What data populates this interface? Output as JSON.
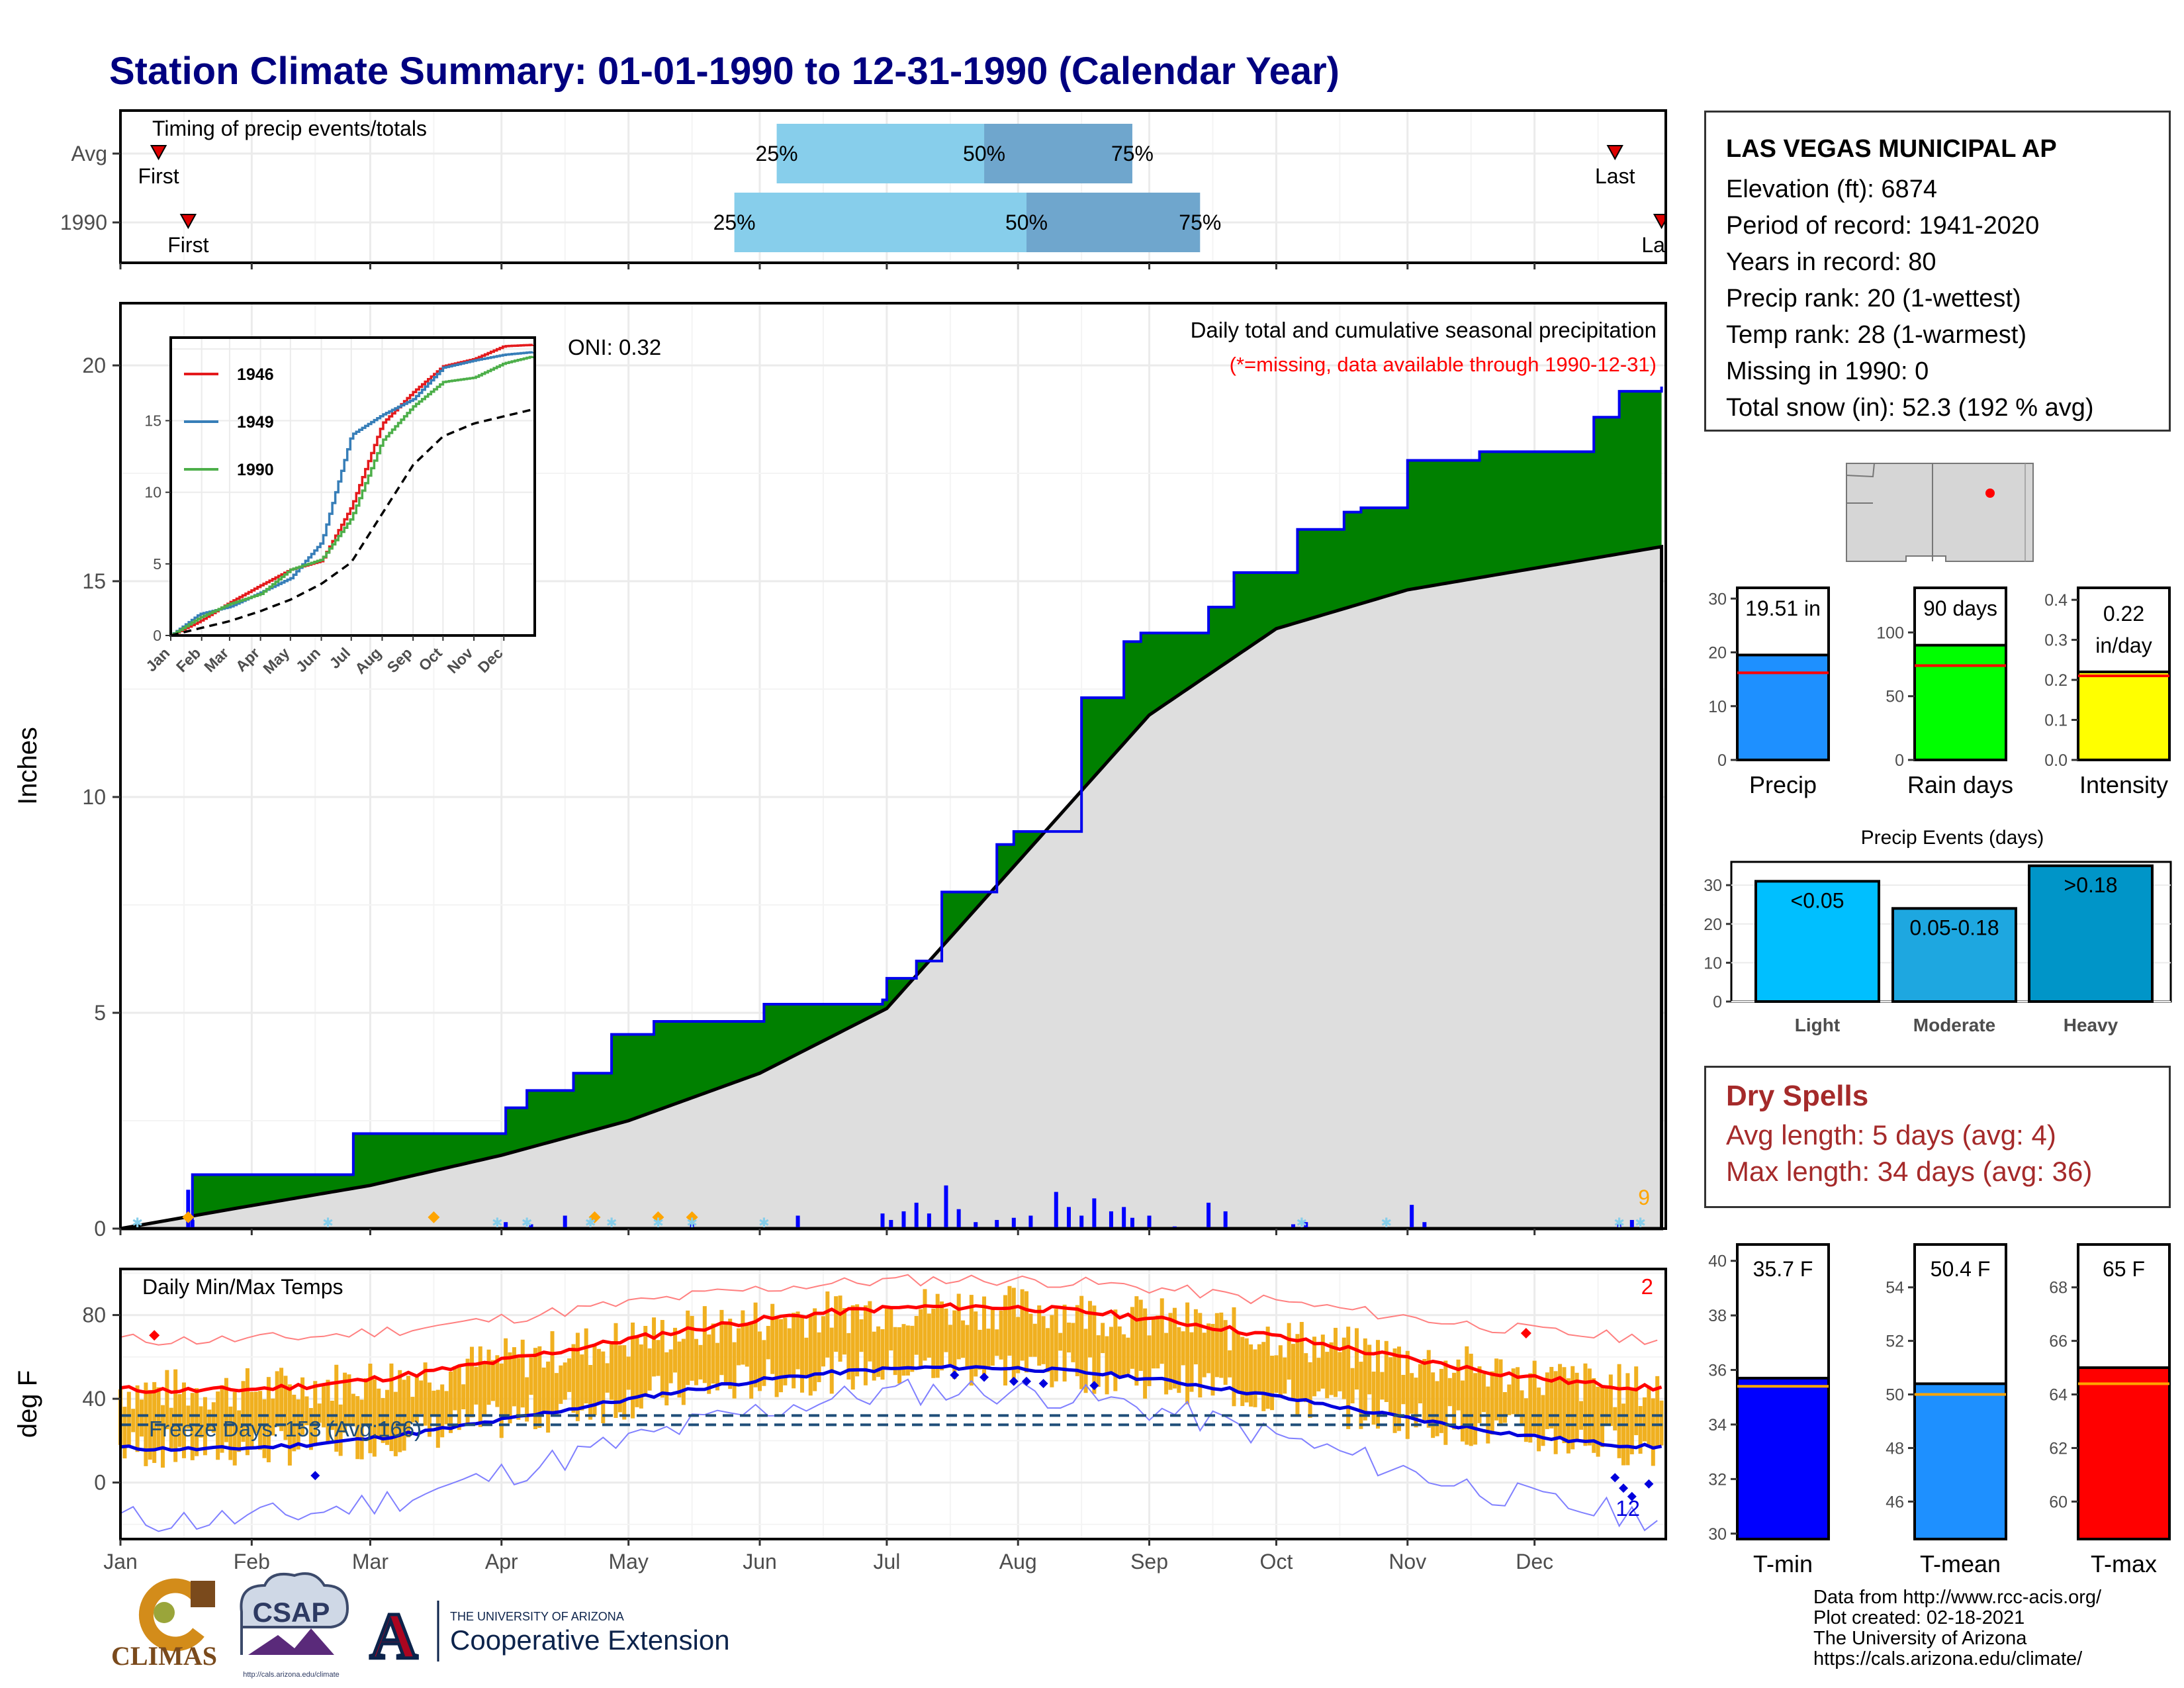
{
  "title": "Station Climate Summary: 01-01-1990 to 12-31-1990 (Calendar Year)",
  "timing_panel": {
    "label": "Timing of precip events/totals",
    "rows": [
      {
        "name": "Avg",
        "first_label": "First",
        "last_label": "Last",
        "first_doy": 10,
        "last_doy": 354,
        "p25_doy": 156,
        "p50_doy": 205,
        "p75_doy": 240,
        "p25_label": "25%",
        "p50_label": "50%",
        "p75_label": "75%"
      },
      {
        "name": "1990",
        "first_label": "First",
        "last_label": "Last",
        "first_doy": 17,
        "last_doy": 365,
        "p25_doy": 146,
        "p50_doy": 215,
        "p75_doy": 256,
        "p25_label": "25%",
        "p50_label": "50%",
        "p75_label": "75%"
      }
    ]
  },
  "precip_panel": {
    "ylabel": "Inches",
    "header": "Daily total and cumulative seasonal precipitation",
    "missing_note": "(*=missing, data available through 1990-12-31)",
    "oni": "ONI: 0.32",
    "missing_count": "9",
    "y_ticks": [
      "0",
      "5",
      "10",
      "15",
      "20"
    ]
  },
  "inset": {
    "legend": [
      "1946",
      "1949",
      "1990"
    ],
    "y_ticks": [
      "0",
      "5",
      "10",
      "15"
    ],
    "x_ticks": [
      "Jan",
      "Feb",
      "Mar",
      "Apr",
      "May",
      "Jun",
      "Jul",
      "Aug",
      "Sep",
      "Oct",
      "Nov",
      "Dec"
    ]
  },
  "temp_panel": {
    "ylabel": "deg F",
    "header": "Daily Min/Max Temps",
    "freeze_label": "Freeze Days: 153 (Avg:166)",
    "record_high_count": "2",
    "record_low_count": "12",
    "y_ticks": [
      "0",
      "40",
      "80"
    ]
  },
  "months": [
    "Jan",
    "Feb",
    "Mar",
    "Apr",
    "May",
    "Jun",
    "Jul",
    "Aug",
    "Sep",
    "Oct",
    "Nov",
    "Dec"
  ],
  "station": {
    "name": "LAS VEGAS MUNICIPAL AP",
    "lines": [
      "Elevation (ft): 6874",
      "Period of record: 1941-2020",
      "Years in record: 80",
      "Precip rank: 20 (1-wettest)",
      "Temp rank: 28 (1-warmest)",
      "Missing in 1990: 0",
      "Total snow (in): 52.3 (192 % avg)"
    ]
  },
  "summary_bars": [
    {
      "label": "Precip",
      "value_label": "19.51 in",
      "ticks": [
        "0",
        "10",
        "20",
        "30"
      ],
      "color": "#1e90ff"
    },
    {
      "label": "Rain days",
      "value_label": "90 days",
      "ticks": [
        "0",
        "50",
        "100"
      ],
      "color": "#00ff00"
    },
    {
      "label": "Intensity",
      "value_label_1": "0.22",
      "value_label_2": "in/day",
      "ticks": [
        "0.0",
        "0.1",
        "0.2",
        "0.3",
        "0.4"
      ],
      "color": "#ffff00"
    }
  ],
  "precip_events": {
    "title": "Precip Events (days)",
    "ticks": [
      "0",
      "10",
      "20",
      "30"
    ],
    "bars": [
      {
        "label": "Light",
        "inner": "<0.05",
        "color": "#00bfff"
      },
      {
        "label": "Moderate",
        "inner": "0.05-0.18",
        "color": "#1ea7e0"
      },
      {
        "label": "Heavy",
        "inner": ">0.18",
        "color": "#0095c8"
      }
    ]
  },
  "dry_spells": {
    "title": "Dry Spells",
    "avg": "Avg length: 5 days (avg: 4)",
    "max": "Max length: 34 days (avg: 36)",
    "color": "#a52a2a"
  },
  "temp_bars": [
    {
      "label": "T-min",
      "value_label": "35.7 F",
      "ticks": [
        "30",
        "32",
        "34",
        "36",
        "38",
        "40"
      ],
      "color": "#0000ff"
    },
    {
      "label": "T-mean",
      "value_label": "50.4 F",
      "ticks": [
        "46",
        "48",
        "50",
        "52",
        "54"
      ],
      "color": "#1e90ff"
    },
    {
      "label": "T-max",
      "value_label": "65 F",
      "ticks": [
        "60",
        "62",
        "64",
        "66",
        "68"
      ],
      "color": "#ff0000"
    }
  ],
  "footer": [
    "Data from http://www.rcc-acis.org/",
    "Plot created: 02-18-2021",
    "The University of Arizona",
    "https://cals.arizona.edu/climate/"
  ],
  "logos": {
    "climas": "CLIMAS",
    "csap": "CSAP",
    "csap_url": "http://cals.arizona.edu/climate",
    "ua_small": "THE UNIVERSITY OF ARIZONA",
    "ua_big": "Cooperative Extension",
    "ua_letter": "A"
  },
  "chart_data": [
    {
      "type": "area",
      "title": "Daily total and cumulative seasonal precipitation",
      "xlabel": "",
      "ylabel": "Inches",
      "ylim": [
        0,
        21.5
      ],
      "x_unit": "day of year",
      "series": [
        {
          "name": "1990",
          "x": [
            1,
            17,
            18,
            55,
            56,
            84,
            92,
            97,
            108,
            117,
            127,
            153,
            181,
            182,
            189,
            195,
            208,
            212,
            228,
            238,
            242,
            258,
            264,
            279,
            290,
            294,
            305,
            322,
            349,
            355,
            365
          ],
          "y": [
            0,
            0,
            1.25,
            1.25,
            2.2,
            2.2,
            2.8,
            3.2,
            3.6,
            4.5,
            4.8,
            5.2,
            5.3,
            5.8,
            6.2,
            7.8,
            8.9,
            9.2,
            12.3,
            13.6,
            13.8,
            14.4,
            15.2,
            16.2,
            16.6,
            16.7,
            17.8,
            18.0,
            18.8,
            19.4,
            19.51
          ]
        },
        {
          "name": "Avg",
          "x": [
            1,
            30,
            60,
            91,
            121,
            152,
            182,
            213,
            244,
            274,
            305,
            335,
            365
          ],
          "y": [
            0,
            0.5,
            1.0,
            1.7,
            2.5,
            3.6,
            5.1,
            8.5,
            11.9,
            13.9,
            14.8,
            15.3,
            15.8
          ]
        }
      ],
      "daily_precip": [
        [
          17,
          0.9
        ],
        [
          18,
          0.2
        ],
        [
          92,
          0.15
        ],
        [
          98,
          0.1
        ],
        [
          106,
          0.3
        ],
        [
          136,
          0.25
        ],
        [
          161,
          0.3
        ],
        [
          181,
          0.35
        ],
        [
          183,
          0.2
        ],
        [
          186,
          0.4
        ],
        [
          189,
          0.6
        ],
        [
          192,
          0.35
        ],
        [
          196,
          1.0
        ],
        [
          199,
          0.45
        ],
        [
          203,
          0.15
        ],
        [
          208,
          0.2
        ],
        [
          212,
          0.25
        ],
        [
          216,
          0.3
        ],
        [
          222,
          0.85
        ],
        [
          225,
          0.5
        ],
        [
          228,
          0.3
        ],
        [
          231,
          0.7
        ],
        [
          235,
          0.4
        ],
        [
          238,
          0.5
        ],
        [
          240,
          0.25
        ],
        [
          244,
          0.3
        ],
        [
          250,
          0.05
        ],
        [
          258,
          0.6
        ],
        [
          262,
          0.4
        ],
        [
          278,
          0.1
        ],
        [
          281,
          0.15
        ],
        [
          306,
          0.55
        ],
        [
          309,
          0.15
        ],
        [
          355,
          0.1
        ],
        [
          358,
          0.2
        ]
      ]
    },
    {
      "type": "line",
      "title": "",
      "series": [
        {
          "name": "1946",
          "x": [
            1,
            30,
            60,
            91,
            121,
            152,
            182,
            213,
            244,
            274,
            305,
            335,
            365
          ],
          "y": [
            0,
            1.0,
            2.3,
            3.5,
            4.6,
            5.2,
            9.0,
            14.8,
            17.0,
            18.8,
            19.3,
            20.2,
            20.3
          ]
        },
        {
          "name": "1949",
          "x": [
            1,
            30,
            60,
            91,
            121,
            152,
            182,
            213,
            244,
            274,
            305,
            335,
            365
          ],
          "y": [
            0,
            1.5,
            2.0,
            3.0,
            4.0,
            6.5,
            14.0,
            15.4,
            16.5,
            18.7,
            19.2,
            19.6,
            19.8
          ]
        },
        {
          "name": "1990",
          "x": [
            1,
            30,
            60,
            91,
            121,
            152,
            182,
            213,
            244,
            274,
            305,
            335,
            365
          ],
          "y": [
            0,
            1.25,
            2.2,
            2.9,
            4.6,
            5.3,
            8.2,
            13.6,
            16.0,
            17.7,
            18.0,
            19.0,
            19.51
          ]
        },
        {
          "name": "Avg",
          "x": [
            1,
            30,
            60,
            91,
            121,
            152,
            182,
            213,
            244,
            274,
            305,
            335,
            365
          ],
          "y": [
            0,
            0.5,
            1.0,
            1.7,
            2.5,
            3.6,
            5.1,
            8.5,
            11.9,
            13.9,
            14.8,
            15.3,
            15.8
          ]
        }
      ],
      "ylim": [
        0,
        20.5
      ]
    },
    {
      "type": "bar",
      "title": "Daily Min/Max Temps",
      "ylabel": "deg F",
      "ylim": [
        -27,
        102
      ],
      "normal_max": {
        "jan": 44,
        "jul": 84
      },
      "normal_min": {
        "jan": 16,
        "jul": 55
      },
      "record_max": {
        "jan": 68,
        "jul": 97
      },
      "record_min": {
        "jan": -18,
        "jul": 44
      },
      "freeze_line": 32
    },
    {
      "type": "bar",
      "categories": [
        "Precip",
        "Rain days",
        "Intensity"
      ],
      "values": [
        19.51,
        90,
        0.22
      ],
      "averages": [
        16.2,
        74,
        0.21
      ],
      "ylims": [
        [
          0,
          32
        ],
        [
          0,
          135
        ],
        [
          0,
          0.43
        ]
      ]
    },
    {
      "type": "bar",
      "title": "Precip Events (days)",
      "categories": [
        "Light",
        "Moderate",
        "Heavy"
      ],
      "values": [
        31,
        24,
        35
      ],
      "ylim": [
        0,
        36
      ]
    },
    {
      "type": "bar",
      "categories": [
        "T-min",
        "T-mean",
        "T-max"
      ],
      "values": [
        35.7,
        50.4,
        65
      ],
      "averages": [
        35.4,
        50.0,
        64.4
      ],
      "ylims": [
        [
          29.8,
          40.6
        ],
        [
          44.6,
          55.6
        ],
        [
          58.6,
          69.6
        ]
      ]
    }
  ]
}
